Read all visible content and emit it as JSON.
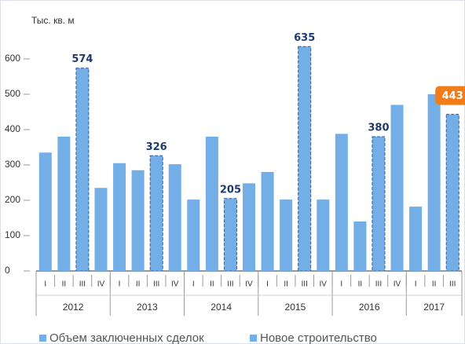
{
  "chart_data": {
    "type": "bar",
    "y_axis_label": "Тыс. кв. м",
    "categories": [
      "I",
      "II",
      "III",
      "IV",
      "I",
      "II",
      "III",
      "IV",
      "I",
      "II",
      "III",
      "IV",
      "I",
      "II",
      "III",
      "IV",
      "I",
      "II",
      "III",
      "IV",
      "I",
      "II",
      "III"
    ],
    "groups": [
      "2012",
      "2013",
      "2014",
      "2015",
      "2016",
      "2017"
    ],
    "series": [
      {
        "name": "Объем заключенных сделок",
        "color": "#74aee6",
        "values": [
          335,
          380,
          null,
          235,
          305,
          285,
          null,
          302,
          202,
          380,
          null,
          248,
          280,
          202,
          null,
          202,
          388,
          140,
          null,
          470,
          182,
          500,
          null
        ]
      },
      {
        "name": "Новое строительство",
        "color": "#74aee6",
        "border_color": "#2f5f9e",
        "label_color": "#1f3a6e",
        "values": [
          null,
          null,
          574,
          null,
          null,
          null,
          326,
          null,
          null,
          null,
          205,
          null,
          null,
          null,
          635,
          null,
          null,
          null,
          380,
          null,
          null,
          null,
          443
        ]
      }
    ],
    "highlight_color": "#f07d1a",
    "ylim": [
      0,
      700
    ],
    "yticks": [
      0,
      100,
      200,
      300,
      400,
      500,
      600
    ],
    "grid": false
  }
}
